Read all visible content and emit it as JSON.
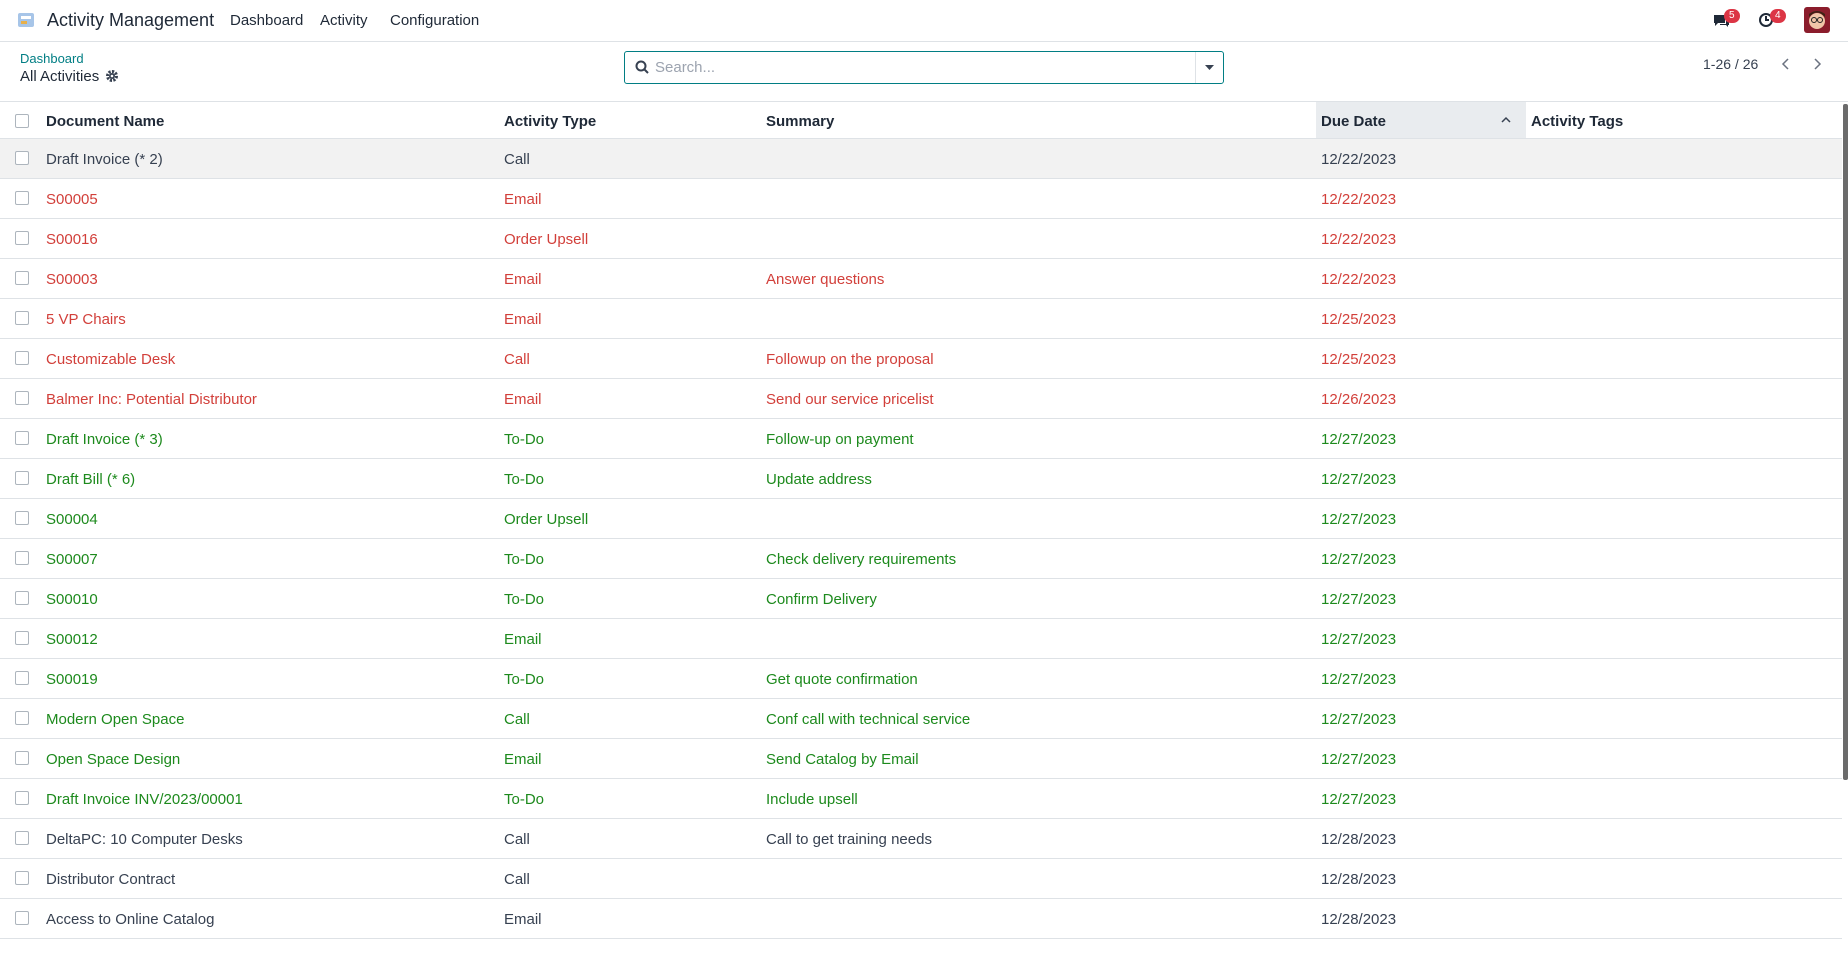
{
  "navbar": {
    "app_name": "Activity Management",
    "menu": [
      "Dashboard",
      "Activity",
      "Configuration"
    ],
    "messages_count": 5,
    "activities_count": 4
  },
  "control_panel": {
    "breadcrumb": "Dashboard",
    "title": "All Activities",
    "search_placeholder": "Search...",
    "pager": "1-26 / 26"
  },
  "table": {
    "columns": [
      "Document Name",
      "Activity Type",
      "Summary",
      "Due Date",
      "Activity Tags"
    ],
    "rows": [
      {
        "document": "Draft Invoice (* 2)",
        "type": "Call",
        "due": "12/22/2023",
        "color": "#374151"
      },
      {
        "document": "S00005",
        "type": "Email",
        "due": "12/22/2023",
        "color": "#d23f3a"
      },
      {
        "document": "S00016",
        "type": "Order Upsell",
        "due": "12/22/2023",
        "color": "#d23f3a"
      },
      {
        "document": "S00003",
        "type": "Email",
        "summary": "Answer questions",
        "due": "12/22/2023",
        "color": "#d23f3a"
      },
      {
        "document": "5 VP Chairs",
        "type": "Email",
        "due": "12/25/2023",
        "color": "#d23f3a"
      },
      {
        "document": "Customizable Desk",
        "type": "Call",
        "summary": "Followup on the proposal",
        "due": "12/25/2023",
        "color": "#d23f3a"
      },
      {
        "document": "Balmer Inc: Potential Distributor",
        "type": "Email",
        "summary": "Send our service pricelist",
        "due": "12/26/2023",
        "color": "#d23f3a"
      },
      {
        "document": "Draft Invoice (* 3)",
        "type": "To-Do",
        "summary": "Follow-up on payment",
        "due": "12/27/2023",
        "color": "#1d8a1d"
      },
      {
        "document": "Draft Bill (* 6)",
        "type": "To-Do",
        "summary": "Update address",
        "due": "12/27/2023",
        "color": "#1d8a1d"
      },
      {
        "document": "S00004",
        "type": "Order Upsell",
        "due": "12/27/2023",
        "color": "#1d8a1d"
      },
      {
        "document": "S00007",
        "type": "To-Do",
        "summary": "Check delivery requirements",
        "due": "12/27/2023",
        "color": "#1d8a1d"
      },
      {
        "document": "S00010",
        "type": "To-Do",
        "summary": "Confirm Delivery",
        "due": "12/27/2023",
        "color": "#1d8a1d"
      },
      {
        "document": "S00012",
        "type": "Email",
        "due": "12/27/2023",
        "color": "#1d8a1d"
      },
      {
        "document": "S00019",
        "type": "To-Do",
        "summary": "Get quote confirmation",
        "due": "12/27/2023",
        "color": "#1d8a1d"
      },
      {
        "document": "Modern Open Space",
        "type": "Call",
        "summary": "Conf call with technical service",
        "due": "12/27/2023",
        "color": "#1d8a1d"
      },
      {
        "document": "Open Space Design",
        "type": "Email",
        "summary": "Send Catalog by Email",
        "due": "12/27/2023",
        "color": "#1d8a1d"
      },
      {
        "document": "Draft Invoice INV/2023/00001",
        "type": "To-Do",
        "summary": "Include upsell",
        "due": "12/27/2023",
        "color": "#1d8a1d"
      },
      {
        "document": "DeltaPC: 10 Computer Desks",
        "type": "Call",
        "summary": "Call to get training needs",
        "due": "12/28/2023",
        "color": "#374151"
      },
      {
        "document": "Distributor Contract",
        "type": "Call",
        "due": "12/28/2023",
        "color": "#374151"
      },
      {
        "document": "Access to Online Catalog",
        "type": "Email",
        "due": "12/28/2023",
        "color": "#374151"
      }
    ]
  }
}
